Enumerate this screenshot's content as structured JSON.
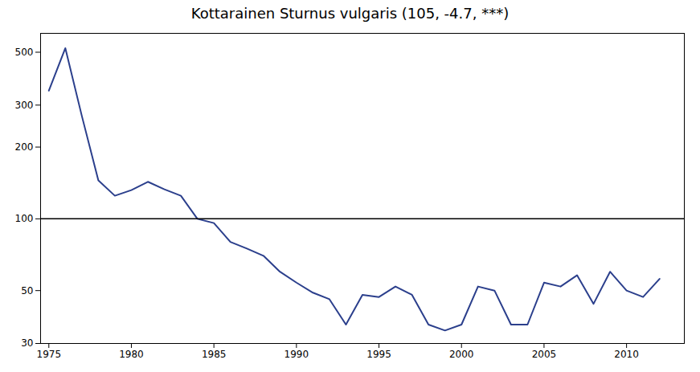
{
  "chart_data": {
    "type": "line",
    "title": "Kottarainen Sturnus vulgaris (105, -4.7, ***)",
    "x": [
      1975,
      1976,
      1977,
      1978,
      1979,
      1980,
      1981,
      1982,
      1983,
      1984,
      1985,
      1986,
      1987,
      1988,
      1989,
      1990,
      1991,
      1992,
      1993,
      1994,
      1995,
      1996,
      1997,
      1998,
      1999,
      2000,
      2001,
      2002,
      2003,
      2004,
      2005,
      2006,
      2007,
      2008,
      2009,
      2010,
      2011,
      2012
    ],
    "values": [
      345,
      520,
      270,
      145,
      125,
      132,
      143,
      133,
      125,
      100,
      96,
      80,
      75,
      70,
      60,
      54,
      49,
      46,
      36,
      48,
      47,
      52,
      48,
      36,
      34,
      36,
      52,
      50,
      36,
      36,
      54,
      52,
      58,
      44,
      60,
      50,
      47,
      56
    ],
    "color": "#2B3F8C",
    "reference_line": 100,
    "xlim": [
      1974.5,
      2013.5
    ],
    "xticks": [
      1975,
      1980,
      1985,
      1990,
      1995,
      2000,
      2005,
      2010
    ],
    "ylim": [
      30,
      600
    ],
    "yticks": [
      30,
      50,
      100,
      200,
      300,
      500
    ],
    "log": "y",
    "grid": false
  }
}
